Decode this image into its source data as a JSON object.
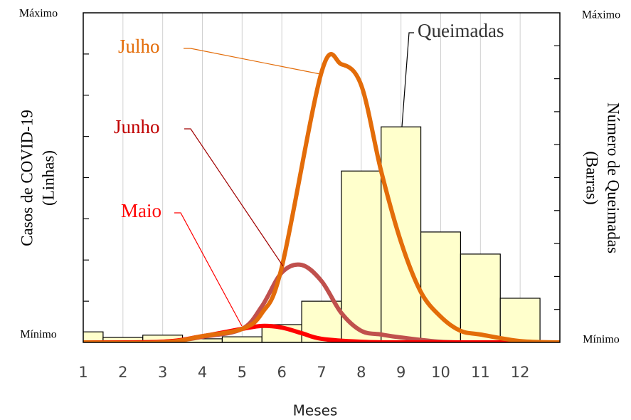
{
  "chart_data": {
    "type": "combo",
    "xlabel": "Meses",
    "ylabel": [
      "Casos de COVID-19",
      "(Linhas)"
    ],
    "y2label": [
      "Número de Queimadas",
      "(Barras)"
    ],
    "xlim": [
      1,
      13
    ],
    "xticks": [
      1,
      2,
      3,
      4,
      5,
      6,
      7,
      8,
      9,
      10,
      11,
      12
    ],
    "ylim": [
      0,
      100
    ],
    "yticks": [
      {
        "value": 0,
        "label": "Mínimo"
      },
      {
        "value": 100,
        "label": "Máximo"
      }
    ],
    "minor_yticks": [
      12.5,
      25,
      37.5,
      50,
      62.5,
      75,
      87.5
    ],
    "y2lim": [
      0,
      100
    ],
    "y2ticks": [
      {
        "value": 0,
        "label": "Mínimo"
      },
      {
        "value": 100,
        "label": "Máximo"
      }
    ],
    "minor_y2ticks": [
      10,
      20,
      30,
      40,
      50,
      60,
      70,
      80,
      90
    ],
    "grid": true,
    "series": [
      {
        "name": "Queimadas",
        "type": "bar",
        "axis": "y2",
        "color": "#ffffcc",
        "x": [
          1,
          2,
          3,
          4,
          5,
          6,
          7,
          8,
          9,
          10,
          11,
          12
        ],
        "values": [
          3.2,
          1.5,
          2.2,
          1.1,
          1.7,
          5.4,
          12.5,
          52,
          65.4,
          33.5,
          26.8,
          13.4
        ]
      },
      {
        "name": "Junho",
        "type": "line",
        "color": "#c0504d",
        "x": [
          1,
          3,
          4,
          5,
          5.5,
          6,
          6.5,
          7,
          7.5,
          8,
          8.5,
          9,
          10,
          11,
          13
        ],
        "values": [
          0,
          0.2,
          1.7,
          4.1,
          11,
          21.2,
          23.5,
          18.6,
          8.9,
          3.5,
          2.4,
          1.5,
          0.2,
          0,
          0
        ]
      },
      {
        "name": "Maio",
        "type": "line",
        "color": "#ff0000",
        "x": [
          1,
          3,
          4,
          5,
          5.5,
          6,
          6.5,
          7,
          8,
          9,
          13
        ],
        "values": [
          0,
          0.2,
          1.9,
          4.1,
          5,
          4.5,
          2.8,
          1.1,
          0.2,
          0,
          0
        ]
      },
      {
        "name": "Julho",
        "type": "line",
        "color": "#e36c09",
        "x": [
          1,
          3,
          4,
          5,
          5.5,
          6,
          7,
          7.5,
          8,
          8.5,
          9,
          9.5,
          10,
          10.5,
          11,
          12,
          13
        ],
        "values": [
          0,
          0,
          1.9,
          4.1,
          8.9,
          22.9,
          82,
          84.4,
          78,
          52,
          30.5,
          15.3,
          7.8,
          3.5,
          2.4,
          0.4,
          0
        ]
      }
    ]
  }
}
